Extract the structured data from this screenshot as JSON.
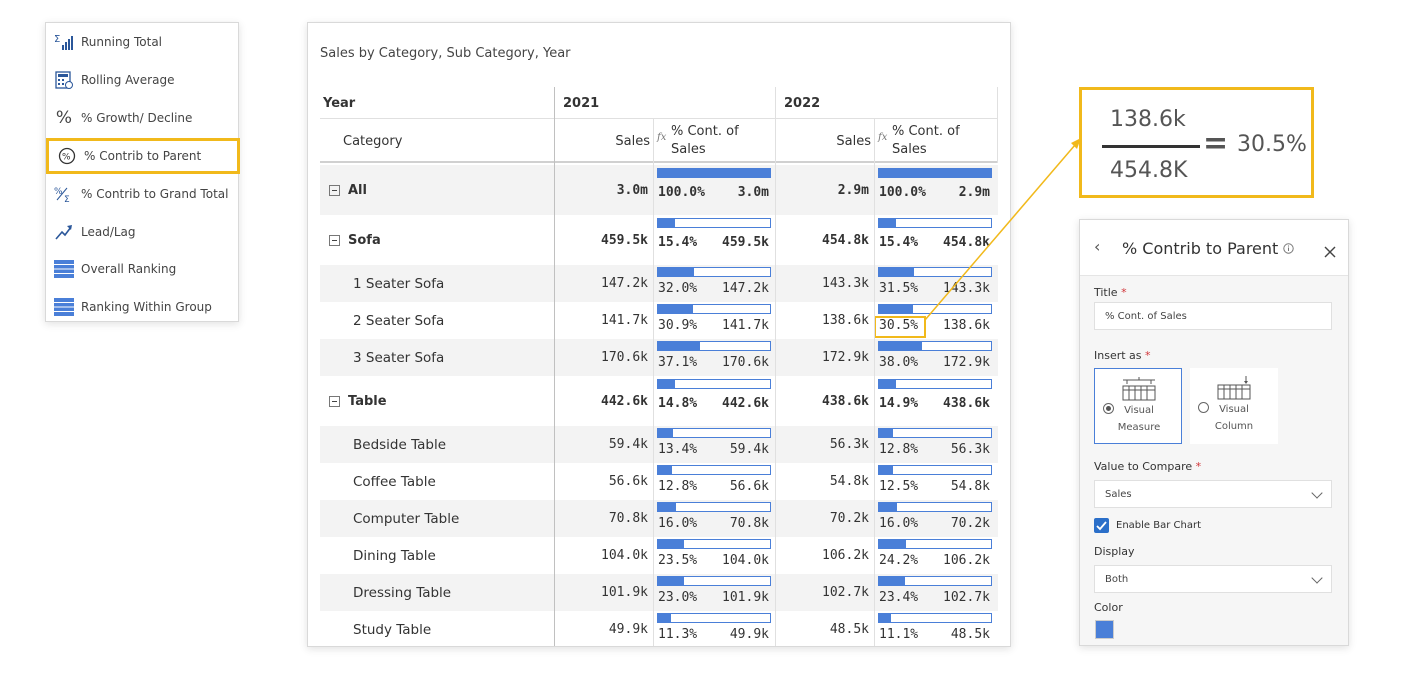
{
  "menu": {
    "items": [
      {
        "label": "Running Total",
        "icon": "running-total-icon"
      },
      {
        "label": "Rolling Average",
        "icon": "rolling-average-icon"
      },
      {
        "label": "% Growth/ Decline",
        "icon": "percent-icon"
      },
      {
        "label": "% Contrib to Parent",
        "icon": "percent-circle-icon"
      },
      {
        "label": "% Contrib to Grand Total",
        "icon": "percent-sigma-icon"
      },
      {
        "label": "Lead/Lag",
        "icon": "trend-arrow-icon"
      },
      {
        "label": "Overall Ranking",
        "icon": "ranking-icon"
      },
      {
        "label": "Ranking Within Group",
        "icon": "ranking-group-icon"
      }
    ]
  },
  "table": {
    "title": "Sales by Category, Sub Category, Year",
    "year_label": "Year",
    "category_label": "Category",
    "years": [
      "2021",
      "2022"
    ],
    "sales_label": "Sales",
    "fx_label": "fx",
    "cont_label": "% Cont. of Sales",
    "bar_color": "#4a7fd8",
    "highlight_color": "#f1b91b",
    "rows": [
      {
        "label": "All",
        "level": 0,
        "expander": true,
        "s1": "3.0m",
        "p1": "100.0%",
        "v1": "3.0m",
        "f1": 1.0,
        "s2": "2.9m",
        "p2": "100.0%",
        "v2": "2.9m",
        "f2": 1.0
      },
      {
        "label": "Sofa",
        "level": 0,
        "expander": true,
        "s1": "459.5k",
        "p1": "15.4%",
        "v1": "459.5k",
        "f1": 0.154,
        "s2": "454.8k",
        "p2": "15.4%",
        "v2": "454.8k",
        "f2": 0.154
      },
      {
        "label": "1 Seater Sofa",
        "level": 1,
        "s1": "147.2k",
        "p1": "32.0%",
        "v1": "147.2k",
        "f1": 0.32,
        "s2": "143.3k",
        "p2": "31.5%",
        "v2": "143.3k",
        "f2": 0.315
      },
      {
        "label": "2 Seater Sofa",
        "level": 1,
        "s1": "141.7k",
        "p1": "30.9%",
        "v1": "141.7k",
        "f1": 0.309,
        "s2": "138.6k",
        "p2": "30.5%",
        "v2": "138.6k",
        "f2": 0.305
      },
      {
        "label": "3 Seater Sofa",
        "level": 1,
        "s1": "170.6k",
        "p1": "37.1%",
        "v1": "170.6k",
        "f1": 0.371,
        "s2": "172.9k",
        "p2": "38.0%",
        "v2": "172.9k",
        "f2": 0.38
      },
      {
        "label": "Table",
        "level": 0,
        "expander": true,
        "s1": "442.6k",
        "p1": "14.8%",
        "v1": "442.6k",
        "f1": 0.148,
        "s2": "438.6k",
        "p2": "14.9%",
        "v2": "438.6k",
        "f2": 0.149
      },
      {
        "label": "Bedside Table",
        "level": 1,
        "s1": "59.4k",
        "p1": "13.4%",
        "v1": "59.4k",
        "f1": 0.134,
        "s2": "56.3k",
        "p2": "12.8%",
        "v2": "56.3k",
        "f2": 0.128
      },
      {
        "label": "Coffee Table",
        "level": 1,
        "s1": "56.6k",
        "p1": "12.8%",
        "v1": "56.6k",
        "f1": 0.128,
        "s2": "54.8k",
        "p2": "12.5%",
        "v2": "54.8k",
        "f2": 0.125
      },
      {
        "label": "Computer Table",
        "level": 1,
        "s1": "70.8k",
        "p1": "16.0%",
        "v1": "70.8k",
        "f1": 0.16,
        "s2": "70.2k",
        "p2": "16.0%",
        "v2": "70.2k",
        "f2": 0.16
      },
      {
        "label": "Dining Table",
        "level": 1,
        "s1": "104.0k",
        "p1": "23.5%",
        "v1": "104.0k",
        "f1": 0.235,
        "s2": "106.2k",
        "p2": "24.2%",
        "v2": "106.2k",
        "f2": 0.242
      },
      {
        "label": "Dressing Table",
        "level": 1,
        "s1": "101.9k",
        "p1": "23.0%",
        "v1": "101.9k",
        "f1": 0.23,
        "s2": "102.7k",
        "p2": "23.4%",
        "v2": "102.7k",
        "f2": 0.234
      },
      {
        "label": "Study Table",
        "level": 1,
        "s1": "49.9k",
        "p1": "11.3%",
        "v1": "49.9k",
        "f1": 0.113,
        "s2": "48.5k",
        "p2": "11.1%",
        "v2": "48.5k",
        "f2": 0.111
      }
    ]
  },
  "formula": {
    "numerator": "138.6k",
    "denominator": "454.8K",
    "equals": "=",
    "result": "30.5%"
  },
  "panel": {
    "back_icon": "chevron-left-icon",
    "title": "% Contrib to Parent",
    "info_icon": "info-icon",
    "close_icon": "close-icon",
    "title_label": "Title",
    "title_value": "% Cont. of Sales",
    "insert_label": "Insert as",
    "opt_measure_1": "Visual",
    "opt_measure_2": "Measure",
    "opt_column_1": "Visual",
    "opt_column_2": "Column",
    "compare_label": "Value to Compare",
    "compare_value": "Sales",
    "enable_bar_label": "Enable Bar Chart",
    "display_label": "Display",
    "display_value": "Both",
    "color_label": "Color",
    "color_value": "#4a7fd8",
    "required_mark": "*"
  }
}
